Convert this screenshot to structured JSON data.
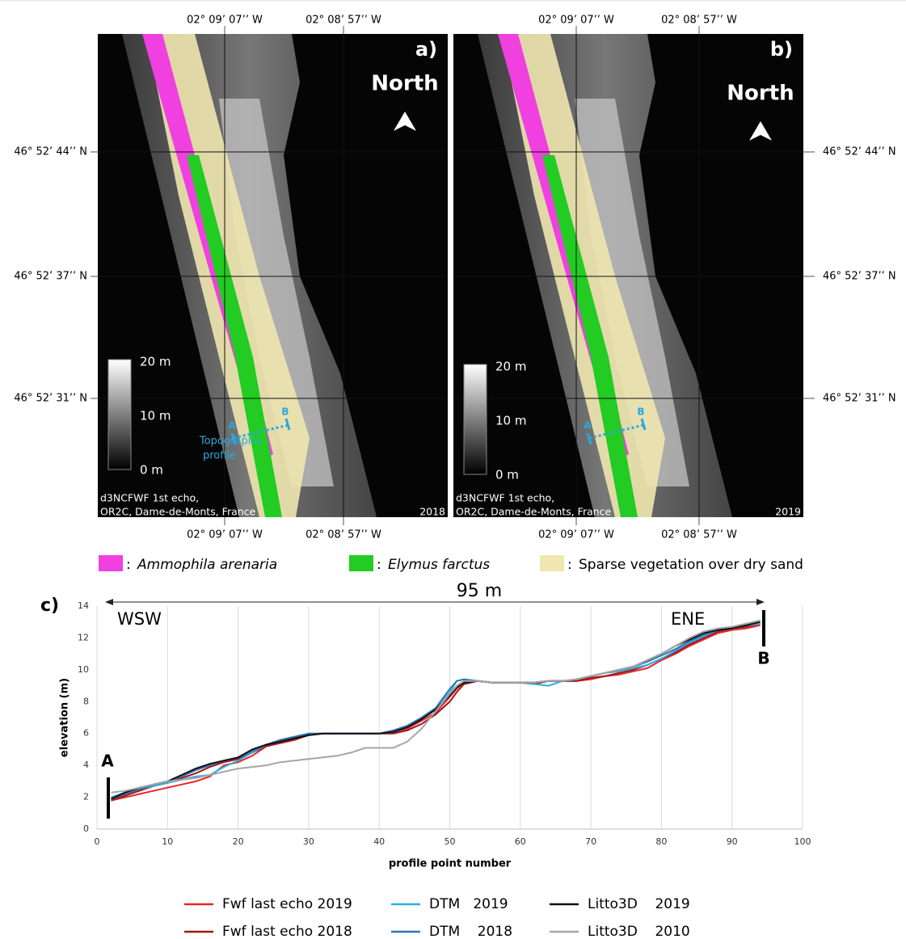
{
  "maps": [
    {
      "label": "a)",
      "north": "North",
      "year": "2018",
      "source": [
        "d3NCFWF 1st echo,",
        "OR2C, Dame-de-Monts, France"
      ],
      "scale": [
        "20 m",
        "10 m",
        "0 m"
      ],
      "profile": {
        "a": "A",
        "b": "B",
        "caption": [
          "Topographic",
          "profile"
        ]
      }
    },
    {
      "label": "b)",
      "north": "North",
      "year": "2019",
      "source": [
        "d3NCFWF 1st echo,",
        "OR2C, Dame-de-Monts, France"
      ],
      "scale": [
        "20 m",
        "10 m",
        "0 m"
      ],
      "profile": {
        "a": "A",
        "b": "B"
      }
    }
  ],
  "lat_labels": [
    "46° 52’ 44’’ N",
    "46° 52’ 37’’ N",
    "46° 52’ 31’’ N"
  ],
  "lon_labels": [
    "02° 09’ 07’’ W",
    "02° 08’ 57’’ W"
  ],
  "map_legend": [
    {
      "sep": ":",
      "label": "Ammophila arenaria",
      "color": "#f040e0"
    },
    {
      "sep": ":",
      "label": "Elymus farctus",
      "color": "#22cc22"
    },
    {
      "sep": ":",
      "label": "Sparse vegetation over dry sand",
      "color": "#efe6b0"
    }
  ],
  "chart_data": {
    "type": "line",
    "panel_label": "c)",
    "distance": "95 m",
    "left_label": "WSW",
    "right_label": "ENE",
    "point_a": "A",
    "point_b": "B",
    "x_label": "profile point number",
    "y_label": "elevation (m)",
    "xlim": [
      0,
      100
    ],
    "ylim": [
      0,
      14
    ],
    "xticks": [
      0,
      10,
      20,
      30,
      40,
      50,
      60,
      70,
      80,
      90,
      100
    ],
    "yticks": [
      0,
      2,
      4,
      6,
      8,
      10,
      12,
      14
    ],
    "grid": true,
    "x": [
      2,
      4,
      6,
      8,
      10,
      12,
      14,
      16,
      18,
      20,
      22,
      24,
      26,
      28,
      30,
      32,
      34,
      36,
      38,
      40,
      42,
      44,
      46,
      48,
      50,
      51,
      52,
      54,
      56,
      58,
      60,
      62,
      64,
      66,
      68,
      70,
      72,
      74,
      76,
      78,
      80,
      82,
      84,
      86,
      88,
      90,
      92,
      94
    ],
    "series": [
      {
        "name": "Fwf last echo 2019",
        "color": "#e8262a",
        "values": [
          1.8,
          2.0,
          2.2,
          2.4,
          2.6,
          2.8,
          3.0,
          3.3,
          4.0,
          4.2,
          4.6,
          5.2,
          5.5,
          5.7,
          5.9,
          6.0,
          6.0,
          6.0,
          6.0,
          6.0,
          6.1,
          6.3,
          6.8,
          7.3,
          8.3,
          8.8,
          9.2,
          9.3,
          9.2,
          9.2,
          9.2,
          9.2,
          9.3,
          9.3,
          9.3,
          9.4,
          9.6,
          9.7,
          9.9,
          10.1,
          10.6,
          11.0,
          11.5,
          11.9,
          12.3,
          12.5,
          12.6,
          12.8
        ]
      },
      {
        "name": "Fwf last echo 2018",
        "color": "#a01818",
        "values": [
          1.8,
          2.1,
          2.4,
          2.7,
          2.9,
          3.2,
          3.5,
          3.9,
          4.2,
          4.4,
          4.8,
          5.2,
          5.4,
          5.6,
          5.9,
          6.0,
          6.0,
          6.0,
          6.0,
          6.0,
          6.0,
          6.2,
          6.6,
          7.2,
          8.0,
          8.6,
          9.1,
          9.3,
          9.2,
          9.2,
          9.2,
          9.1,
          9.3,
          9.3,
          9.3,
          9.5,
          9.6,
          9.8,
          10.0,
          10.3,
          10.7,
          11.1,
          11.6,
          12.0,
          12.4,
          12.6,
          12.7,
          12.9
        ]
      },
      {
        "name": "DTM   2019",
        "color": "#2ab0e8",
        "values": [
          2.0,
          2.3,
          2.5,
          2.7,
          2.9,
          3.1,
          3.3,
          3.4,
          3.9,
          4.3,
          4.8,
          5.3,
          5.6,
          5.8,
          6.0,
          6.0,
          6.0,
          6.0,
          6.0,
          6.0,
          6.1,
          6.4,
          7.0,
          7.5,
          8.6,
          9.3,
          9.4,
          9.3,
          9.2,
          9.2,
          9.2,
          9.1,
          9.0,
          9.3,
          9.4,
          9.6,
          9.8,
          9.9,
          10.1,
          10.3,
          10.7,
          11.2,
          11.7,
          12.1,
          12.5,
          12.6,
          12.8,
          12.9
        ]
      },
      {
        "name": "DTM    2018",
        "color": "#2e75b6",
        "values": [
          1.9,
          2.2,
          2.5,
          2.8,
          3.0,
          3.3,
          3.7,
          4.0,
          4.3,
          4.5,
          4.9,
          5.3,
          5.6,
          5.8,
          6.0,
          6.0,
          6.0,
          6.0,
          6.0,
          6.0,
          6.2,
          6.5,
          7.0,
          7.6,
          8.8,
          9.3,
          9.4,
          9.3,
          9.2,
          9.2,
          9.2,
          9.2,
          9.3,
          9.3,
          9.4,
          9.6,
          9.8,
          10.0,
          10.2,
          10.5,
          10.9,
          11.3,
          11.8,
          12.2,
          12.5,
          12.6,
          12.8,
          13.0
        ]
      },
      {
        "name": "Litto3D    2019",
        "color": "#111111",
        "values": [
          1.9,
          2.3,
          2.6,
          2.8,
          3.0,
          3.4,
          3.8,
          4.1,
          4.3,
          4.5,
          5.0,
          5.3,
          5.5,
          5.7,
          5.9,
          6.0,
          6.0,
          6.0,
          6.0,
          6.0,
          6.1,
          6.4,
          6.9,
          7.5,
          8.4,
          8.9,
          9.2,
          9.3,
          9.2,
          9.2,
          9.2,
          9.2,
          9.3,
          9.3,
          9.4,
          9.6,
          9.8,
          10.0,
          10.2,
          10.6,
          11.0,
          11.5,
          11.9,
          12.3,
          12.5,
          12.6,
          12.8,
          13.0
        ]
      },
      {
        "name": "Litto3D    2010",
        "color": "#a6a6a6",
        "values": [
          2.3,
          2.4,
          2.6,
          2.8,
          3.0,
          3.1,
          3.2,
          3.4,
          3.6,
          3.8,
          3.9,
          4.0,
          4.2,
          4.3,
          4.4,
          4.5,
          4.6,
          4.8,
          5.1,
          5.1,
          5.1,
          5.5,
          6.3,
          7.4,
          8.5,
          9.0,
          9.3,
          9.3,
          9.2,
          9.2,
          9.2,
          9.2,
          9.3,
          9.3,
          9.4,
          9.6,
          9.8,
          10.0,
          10.2,
          10.6,
          11.0,
          11.5,
          12.0,
          12.4,
          12.6,
          12.7,
          12.9,
          13.1
        ]
      }
    ]
  }
}
